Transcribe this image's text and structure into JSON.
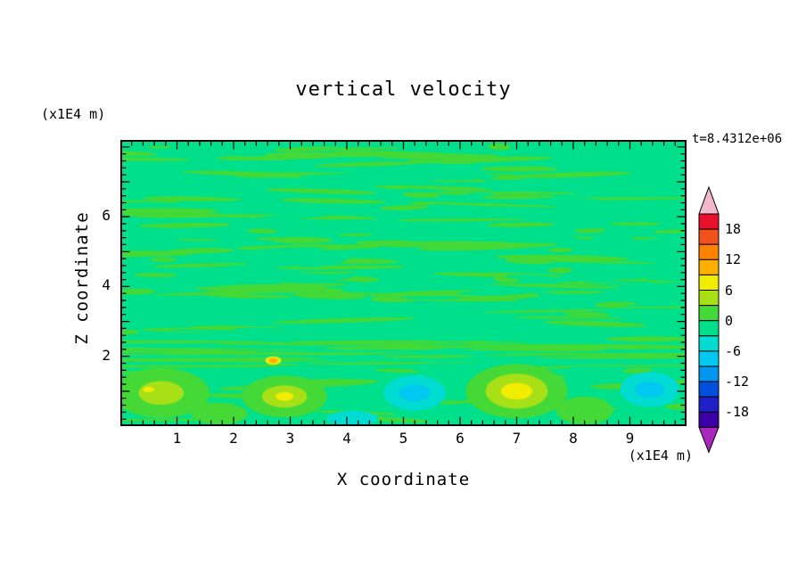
{
  "title": "vertical velocity",
  "timestamp": "t=8.4312e+06",
  "axes": {
    "x": {
      "label": "X coordinate",
      "unit": "(x1E4 m)",
      "ticks": [
        1,
        2,
        3,
        4,
        5,
        6,
        7,
        8,
        9
      ],
      "range": [
        0,
        10
      ]
    },
    "z": {
      "label": "Z coordinate",
      "unit": "(x1E4 m)",
      "ticks": [
        2,
        4,
        6
      ],
      "range": [
        0,
        8.2
      ]
    }
  },
  "colorbar": {
    "labels": [
      "18",
      "12",
      "6",
      "0",
      "-6",
      "-12",
      "-18"
    ],
    "over_color": "#F4B8CC",
    "under_color": "#A827BC",
    "bands": [
      {
        "range": [
          18,
          21
        ],
        "color": "#E8112D"
      },
      {
        "range": [
          15,
          18
        ],
        "color": "#F1511B"
      },
      {
        "range": [
          12,
          15
        ],
        "color": "#FF8200"
      },
      {
        "range": [
          9,
          12
        ],
        "color": "#FFAF00"
      },
      {
        "range": [
          6,
          9
        ],
        "color": "#F0ED00"
      },
      {
        "range": [
          3,
          6
        ],
        "color": "#A8E018"
      },
      {
        "range": [
          0,
          3
        ],
        "color": "#44D936"
      },
      {
        "range": [
          -3,
          0
        ],
        "color": "#00E08C"
      },
      {
        "range": [
          -6,
          -3
        ],
        "color": "#00DCD2"
      },
      {
        "range": [
          -9,
          -6
        ],
        "color": "#00C8F0"
      },
      {
        "range": [
          -12,
          -9
        ],
        "color": "#0096F0"
      },
      {
        "range": [
          -15,
          -12
        ],
        "color": "#0050E0"
      },
      {
        "range": [
          -18,
          -15
        ],
        "color": "#2020C8"
      },
      {
        "range": [
          -21,
          -18
        ],
        "color": "#3C00A8"
      }
    ]
  },
  "chart_data": {
    "type": "heatmap",
    "title": "vertical velocity",
    "xlabel": "X coordinate (x1E4 m)",
    "ylabel": "Z coordinate (x1E4 m)",
    "xlim": [
      0,
      10
    ],
    "ylim": [
      0,
      8.2
    ],
    "time_label": "t=8.4312e+06",
    "contour_interval": 3,
    "level_labels": [
      18,
      12,
      6,
      0,
      -6,
      -12,
      -18
    ],
    "field": {
      "background_color": "#00E08C",
      "background_level": [
        -3,
        0
      ],
      "streak_color": "#44D936",
      "streak_level": [
        0,
        3
      ],
      "seed": 20240613,
      "upper_streaks": 115,
      "upper_gaps": 55,
      "band_streaks": 48,
      "lower_streaks": 22,
      "features": [
        {
          "name": "green-updraft-left",
          "x": 0.72,
          "z": 0.95,
          "peak": 5,
          "layers": [
            {
              "rx": 0.85,
              "ry": 0.72,
              "color": "#44D936"
            },
            {
              "rx": 0.4,
              "ry": 0.34,
              "color": "#A8E018"
            }
          ]
        },
        {
          "name": "yellow-core-left",
          "x": 0.5,
          "z": 1.05,
          "peak": 7,
          "layers": [
            {
              "rx": 0.1,
              "ry": 0.08,
              "color": "#F0ED00"
            }
          ]
        },
        {
          "name": "green-updraft-2",
          "x": 2.9,
          "z": 0.85,
          "peak": 8,
          "layers": [
            {
              "rx": 0.75,
              "ry": 0.6,
              "color": "#44D936"
            },
            {
              "rx": 0.4,
              "ry": 0.32,
              "color": "#A8E018"
            },
            {
              "rx": 0.16,
              "ry": 0.13,
              "color": "#F0ED00"
            }
          ]
        },
        {
          "name": "orange-spot",
          "x": 2.7,
          "z": 1.88,
          "peak": 10,
          "layers": [
            {
              "rx": 0.14,
              "ry": 0.12,
              "color": "#F0ED00"
            },
            {
              "rx": 0.08,
              "ry": 0.07,
              "color": "#FFAF00"
            }
          ]
        },
        {
          "name": "cyan-downdraft-1",
          "x": 5.2,
          "z": 0.95,
          "peak": -7,
          "layers": [
            {
              "rx": 0.55,
              "ry": 0.5,
              "color": "#00DCD2"
            },
            {
              "rx": 0.28,
              "ry": 0.24,
              "color": "#00C8F0"
            }
          ]
        },
        {
          "name": "strong-updraft",
          "x": 7.0,
          "z": 1.0,
          "peak": 9,
          "layers": [
            {
              "rx": 0.9,
              "ry": 0.78,
              "color": "#44D936"
            },
            {
              "rx": 0.55,
              "ry": 0.5,
              "color": "#A8E018"
            },
            {
              "rx": 0.28,
              "ry": 0.24,
              "color": "#F0ED00"
            }
          ]
        },
        {
          "name": "green-patch-right",
          "x": 8.2,
          "z": 0.45,
          "peak": 4,
          "layers": [
            {
              "rx": 0.5,
              "ry": 0.4,
              "color": "#44D936"
            }
          ]
        },
        {
          "name": "cyan-downdraft-2",
          "x": 9.35,
          "z": 1.05,
          "peak": -8,
          "layers": [
            {
              "rx": 0.52,
              "ry": 0.5,
              "color": "#00DCD2"
            },
            {
              "rx": 0.26,
              "ry": 0.24,
              "color": "#00C8F0"
            }
          ]
        },
        {
          "name": "cyan-patch-bottom",
          "x": 4.1,
          "z": 0.22,
          "peak": -4,
          "layers": [
            {
              "rx": 0.45,
              "ry": 0.22,
              "color": "#00DCD2"
            }
          ]
        },
        {
          "name": "green-patch-bottom-left",
          "x": 1.75,
          "z": 0.35,
          "peak": 4,
          "layers": [
            {
              "rx": 0.5,
              "ry": 0.3,
              "color": "#44D936"
            }
          ]
        }
      ]
    }
  }
}
